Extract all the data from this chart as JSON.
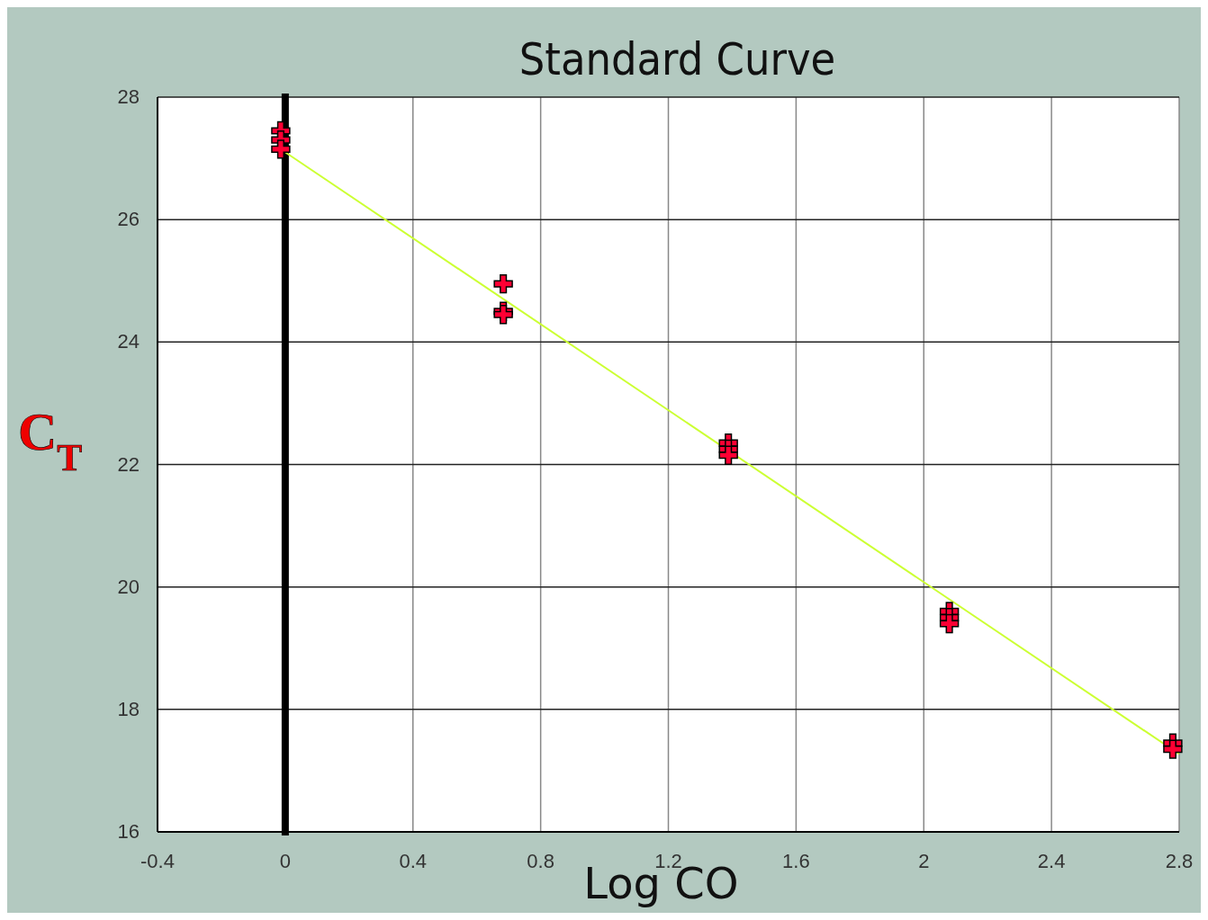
{
  "chart_data": {
    "type": "scatter",
    "title": "Standard Curve",
    "xlabel": "Log CO",
    "ylabel": "C$_{T}$",
    "xlim": [
      -0.4,
      2.8
    ],
    "xticks": [
      -0.4,
      0,
      0.4,
      0.8,
      1.2,
      1.6,
      2,
      2.4,
      2.8
    ],
    "ylim": [
      16,
      28
    ],
    "yticks": [
      16,
      18,
      20,
      22,
      24,
      26,
      28
    ],
    "grid": true,
    "ref_lines": [
      {
        "axis": "x",
        "value": 0,
        "color": "#000000"
      }
    ],
    "series": [
      {
        "type": "scatter",
        "color": "#ff0033",
        "marker": "cross",
        "x": [
          -0.014,
          -0.014,
          -0.014,
          0.683,
          0.683,
          0.683,
          1.388,
          1.388,
          1.388,
          2.08,
          2.08,
          2.08,
          2.78,
          2.78
        ],
        "values": [
          27.45,
          27.3,
          27.15,
          24.95,
          24.5,
          24.45,
          22.35,
          22.25,
          22.15,
          19.6,
          19.5,
          19.4,
          17.45,
          17.35
        ]
      },
      {
        "type": "line",
        "color": "#ccff33",
        "marker": "none",
        "x": [
          0,
          2.8
        ],
        "values": [
          27.1,
          17.27
        ]
      }
    ]
  }
}
